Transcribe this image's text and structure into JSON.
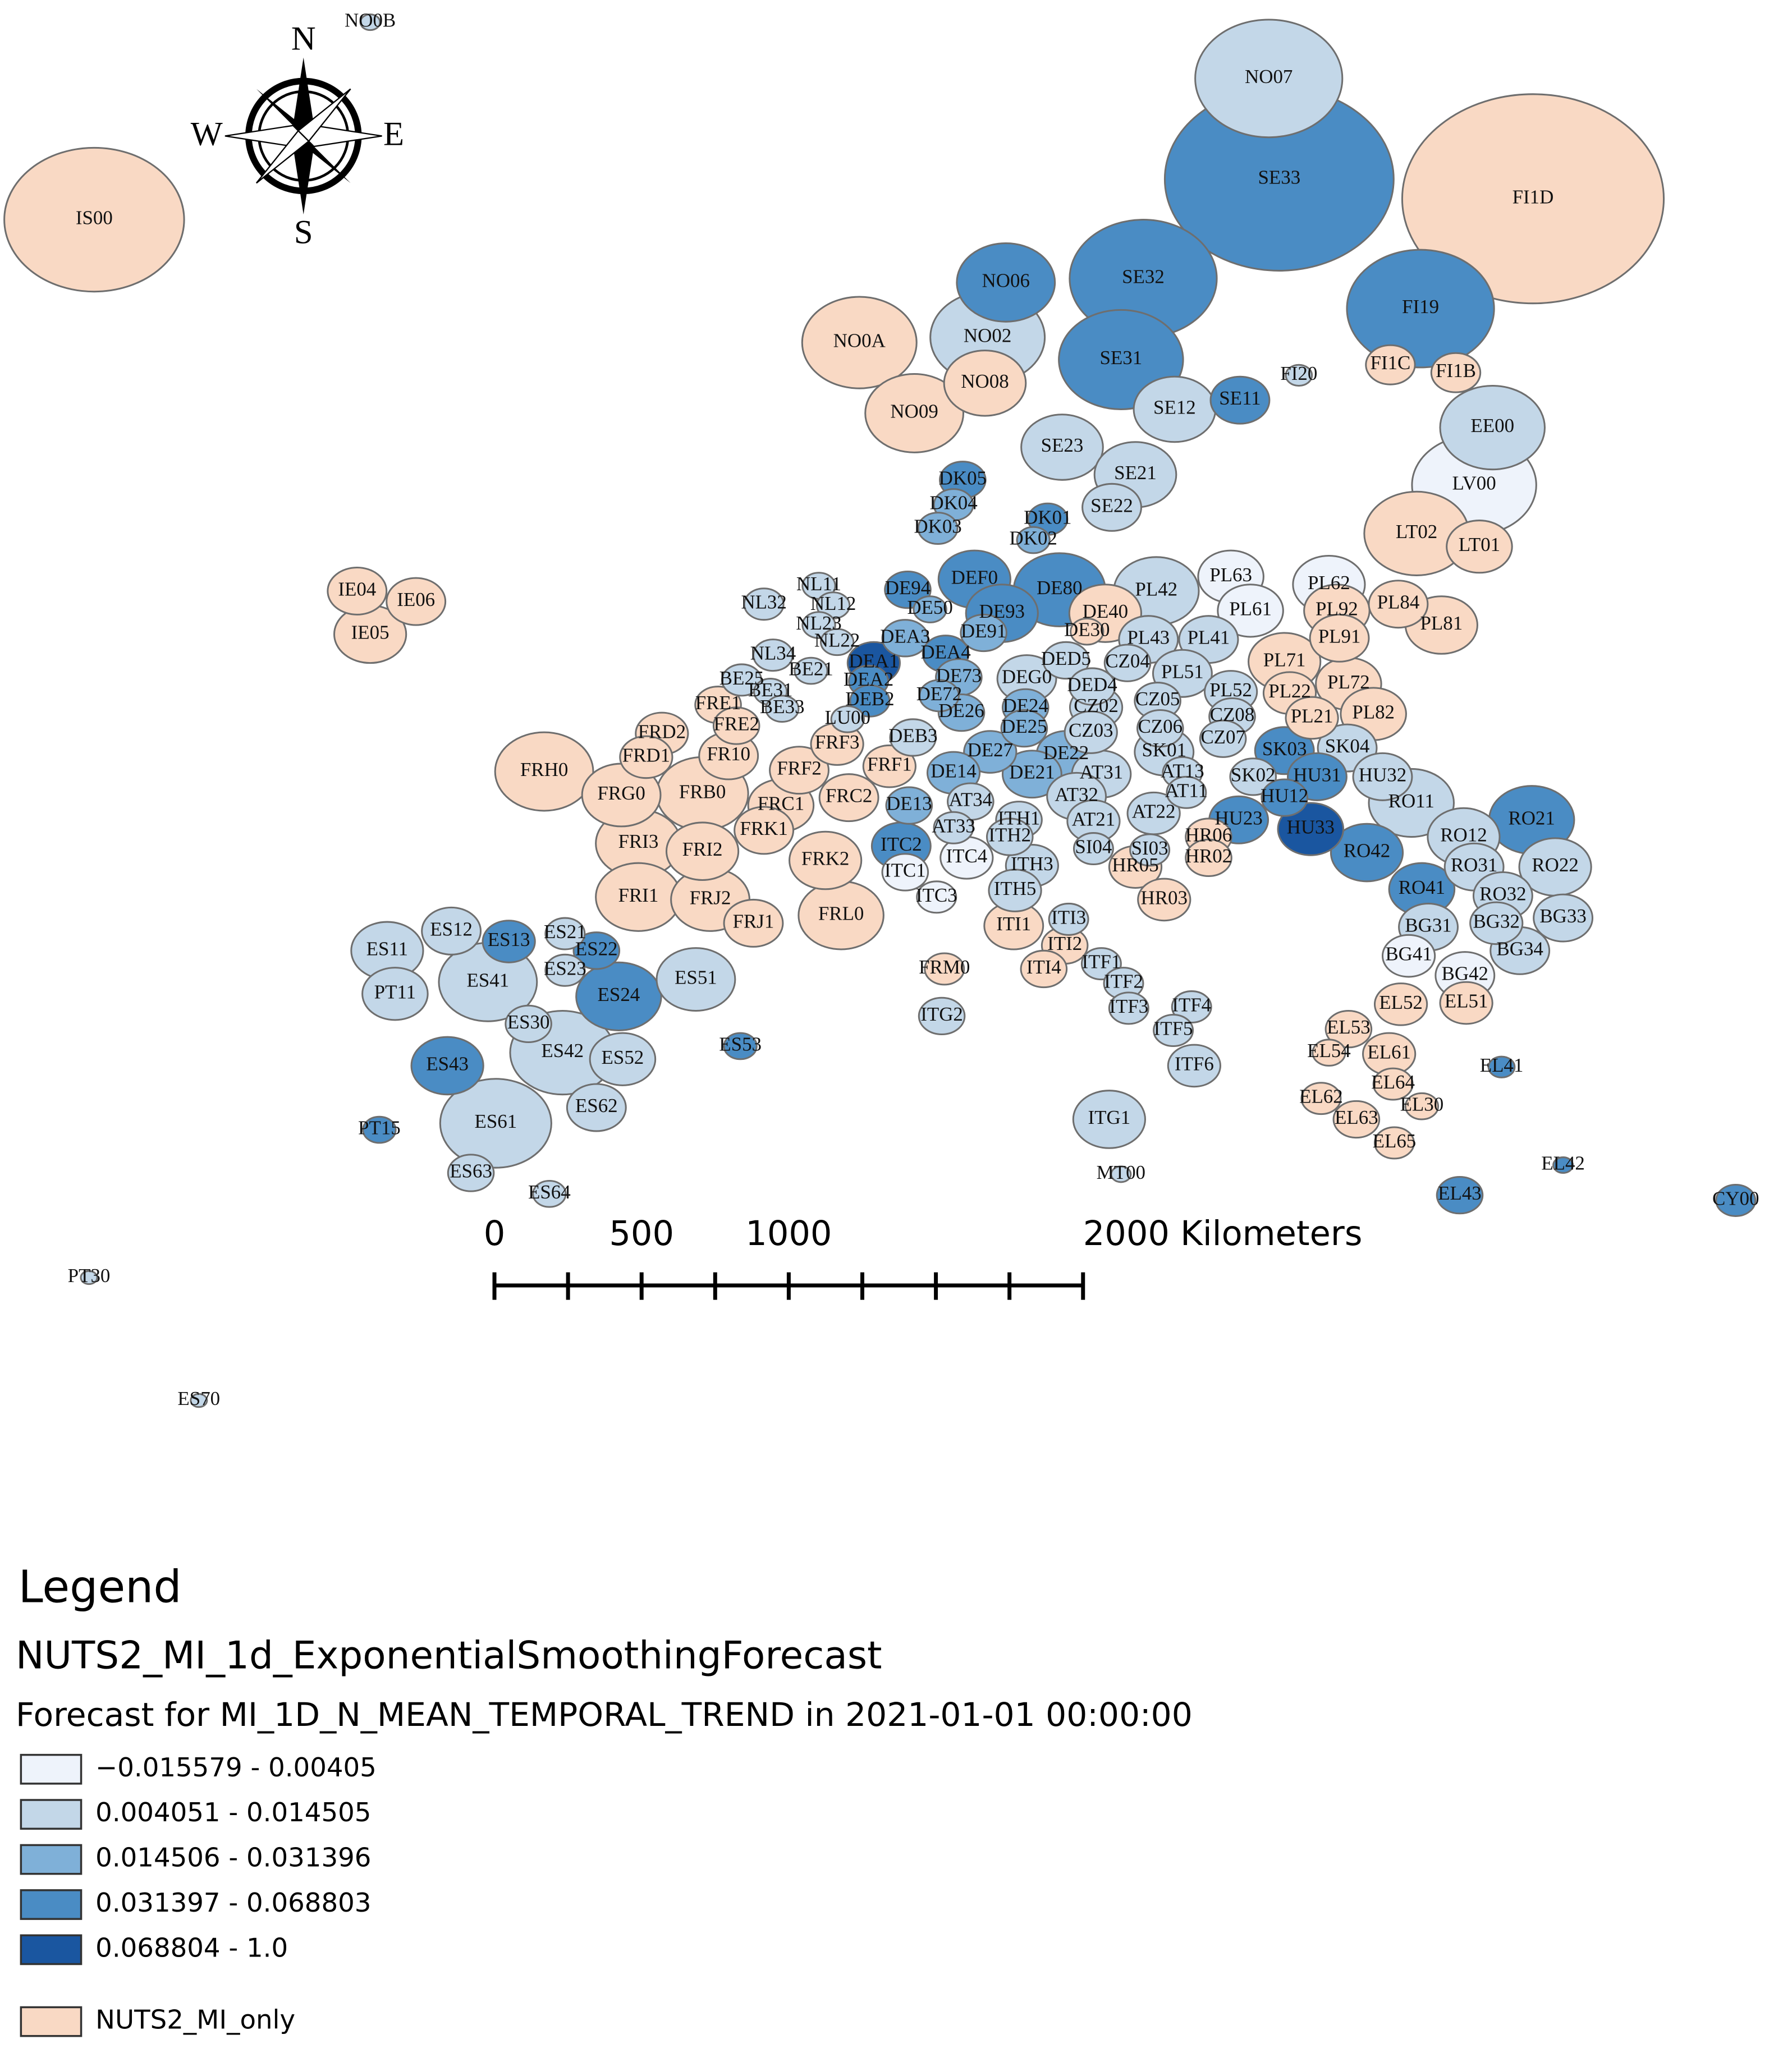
{
  "compass": {
    "n": "N",
    "e": "E",
    "s": "S",
    "w": "W"
  },
  "regions": [
    {
      "code": "NO0B",
      "color": "#c3d7e8"
    },
    {
      "code": "NO07",
      "color": "#c3d7e8"
    },
    {
      "code": "SE33",
      "color": "#4a8cc4"
    },
    {
      "code": "FI1D",
      "color": "#f9d9c4"
    },
    {
      "code": "IS00",
      "color": "#f9d9c4"
    },
    {
      "code": "NO06",
      "color": "#4a8cc4"
    },
    {
      "code": "SE32",
      "color": "#4a8cc4"
    },
    {
      "code": "FI19",
      "color": "#4a8cc4"
    },
    {
      "code": "NO02",
      "color": "#c3d7e8"
    },
    {
      "code": "NO0A",
      "color": "#f9d9c4"
    },
    {
      "code": "SE31",
      "color": "#4a8cc4"
    },
    {
      "code": "FI20",
      "color": "#c3d7e8"
    },
    {
      "code": "FI1C",
      "color": "#f9d9c4"
    },
    {
      "code": "FI1B",
      "color": "#f9d9c4"
    },
    {
      "code": "NO08",
      "color": "#f9d9c4"
    },
    {
      "code": "NO09",
      "color": "#f9d9c4"
    },
    {
      "code": "SE12",
      "color": "#c3d7e8"
    },
    {
      "code": "SE11",
      "color": "#4a8cc4"
    },
    {
      "code": "EE00",
      "color": "#c3d7e8"
    },
    {
      "code": "SE23",
      "color": "#c3d7e8"
    },
    {
      "code": "SE21",
      "color": "#c3d7e8"
    },
    {
      "code": "DK05",
      "color": "#4a8cc4"
    },
    {
      "code": "LV00",
      "color": "#eef3fb"
    },
    {
      "code": "DK04",
      "color": "#7fb0d8"
    },
    {
      "code": "SE22",
      "color": "#c3d7e8"
    },
    {
      "code": "DK01",
      "color": "#4a8cc4"
    },
    {
      "code": "DK03",
      "color": "#7fb0d8"
    },
    {
      "code": "DK02",
      "color": "#7fb0d8"
    },
    {
      "code": "LT02",
      "color": "#f9d9c4"
    },
    {
      "code": "LT01",
      "color": "#f9d9c4"
    },
    {
      "code": "IE04",
      "color": "#f9d9c4"
    },
    {
      "code": "IE06",
      "color": "#f9d9c4"
    },
    {
      "code": "IE05",
      "color": "#f9d9c4"
    },
    {
      "code": "NL11",
      "color": "#c3d7e8"
    },
    {
      "code": "DEF0",
      "color": "#4a8cc4"
    },
    {
      "code": "DE80",
      "color": "#4a8cc4"
    },
    {
      "code": "PL42",
      "color": "#c3d7e8"
    },
    {
      "code": "PL63",
      "color": "#eef3fb"
    },
    {
      "code": "PL62",
      "color": "#eef3fb"
    },
    {
      "code": "NL32",
      "color": "#c3d7e8"
    },
    {
      "code": "NL12",
      "color": "#c3d7e8"
    },
    {
      "code": "DE94",
      "color": "#4a8cc4"
    },
    {
      "code": "DE50",
      "color": "#7fb0d8"
    },
    {
      "code": "DE93",
      "color": "#4a8cc4"
    },
    {
      "code": "DE40",
      "color": "#f9d9c4"
    },
    {
      "code": "PL61",
      "color": "#eef3fb"
    },
    {
      "code": "PL92",
      "color": "#f9d9c4"
    },
    {
      "code": "PL84",
      "color": "#f9d9c4"
    },
    {
      "code": "NL23",
      "color": "#c3d7e8"
    },
    {
      "code": "DE91",
      "color": "#7fb0d8"
    },
    {
      "code": "DE30",
      "color": "#f9d9c4"
    },
    {
      "code": "PL81",
      "color": "#f9d9c4"
    },
    {
      "code": "NL22",
      "color": "#c3d7e8"
    },
    {
      "code": "DEA3",
      "color": "#7fb0d8"
    },
    {
      "code": "PL43",
      "color": "#c3d7e8"
    },
    {
      "code": "PL41",
      "color": "#c3d7e8"
    },
    {
      "code": "PL91",
      "color": "#f9d9c4"
    },
    {
      "code": "NL34",
      "color": "#c3d7e8"
    },
    {
      "code": "DEA4",
      "color": "#4a8cc4"
    },
    {
      "code": "DED5",
      "color": "#c3d7e8"
    },
    {
      "code": "CZ04",
      "color": "#c3d7e8"
    },
    {
      "code": "PL71",
      "color": "#f9d9c4"
    },
    {
      "code": "BE25",
      "color": "#c3d7e8"
    },
    {
      "code": "BE21",
      "color": "#c3d7e8"
    },
    {
      "code": "DEA1",
      "color": "#1a56a0"
    },
    {
      "code": "DE73",
      "color": "#7fb0d8"
    },
    {
      "code": "DEG0",
      "color": "#c3d7e8"
    },
    {
      "code": "PL51",
      "color": "#c3d7e8"
    },
    {
      "code": "PL72",
      "color": "#f9d9c4"
    },
    {
      "code": "BE31",
      "color": "#c3d7e8"
    },
    {
      "code": "DEA2",
      "color": "#4a8cc4"
    },
    {
      "code": "DE72",
      "color": "#7fb0d8"
    },
    {
      "code": "DED4",
      "color": "#c3d7e8"
    },
    {
      "code": "CZ05",
      "color": "#c3d7e8"
    },
    {
      "code": "PL52",
      "color": "#c3d7e8"
    },
    {
      "code": "PL22",
      "color": "#f9d9c4"
    },
    {
      "code": "FRE1",
      "color": "#f9d9c4"
    },
    {
      "code": "BE33",
      "color": "#c3d7e8"
    },
    {
      "code": "DEB2",
      "color": "#4a8cc4"
    },
    {
      "code": "DE26",
      "color": "#7fb0d8"
    },
    {
      "code": "DE24",
      "color": "#7fb0d8"
    },
    {
      "code": "CZ02",
      "color": "#c3d7e8"
    },
    {
      "code": "CZ08",
      "color": "#c3d7e8"
    },
    {
      "code": "PL21",
      "color": "#f9d9c4"
    },
    {
      "code": "PL82",
      "color": "#f9d9c4"
    },
    {
      "code": "FRE2",
      "color": "#f9d9c4"
    },
    {
      "code": "LU00",
      "color": "#c3d7e8"
    },
    {
      "code": "FRD2",
      "color": "#f9d9c4"
    },
    {
      "code": "DEB3",
      "color": "#c3d7e8"
    },
    {
      "code": "DE25",
      "color": "#7fb0d8"
    },
    {
      "code": "CZ03",
      "color": "#c3d7e8"
    },
    {
      "code": "CZ06",
      "color": "#c3d7e8"
    },
    {
      "code": "CZ07",
      "color": "#c3d7e8"
    },
    {
      "code": "SK03",
      "color": "#4a8cc4"
    },
    {
      "code": "SK04",
      "color": "#c3d7e8"
    },
    {
      "code": "FRD1",
      "color": "#f9d9c4"
    },
    {
      "code": "FR10",
      "color": "#f9d9c4"
    },
    {
      "code": "FRF3",
      "color": "#f9d9c4"
    },
    {
      "code": "DE27",
      "color": "#7fb0d8"
    },
    {
      "code": "DE22",
      "color": "#7fb0d8"
    },
    {
      "code": "SK01",
      "color": "#c3d7e8"
    },
    {
      "code": "FRH0",
      "color": "#f9d9c4"
    },
    {
      "code": "FRF2",
      "color": "#f9d9c4"
    },
    {
      "code": "FRF1",
      "color": "#f9d9c4"
    },
    {
      "code": "DE14",
      "color": "#7fb0d8"
    },
    {
      "code": "DE21",
      "color": "#7fb0d8"
    },
    {
      "code": "AT31",
      "color": "#c3d7e8"
    },
    {
      "code": "AT13",
      "color": "#c3d7e8"
    },
    {
      "code": "SK02",
      "color": "#c3d7e8"
    },
    {
      "code": "HU31",
      "color": "#4a8cc4"
    },
    {
      "code": "HU32",
      "color": "#c3d7e8"
    },
    {
      "code": "FRG0",
      "color": "#f9d9c4"
    },
    {
      "code": "FRB0",
      "color": "#f9d9c4"
    },
    {
      "code": "FRC1",
      "color": "#f9d9c4"
    },
    {
      "code": "FRC2",
      "color": "#f9d9c4"
    },
    {
      "code": "DE13",
      "color": "#7fb0d8"
    },
    {
      "code": "AT34",
      "color": "#c3d7e8"
    },
    {
      "code": "AT32",
      "color": "#c3d7e8"
    },
    {
      "code": "AT11",
      "color": "#c3d7e8"
    },
    {
      "code": "HU12",
      "color": "#4a8cc4"
    },
    {
      "code": "RO11",
      "color": "#c3d7e8"
    },
    {
      "code": "FRK1",
      "color": "#f9d9c4"
    },
    {
      "code": "ITC2",
      "color": "#4a8cc4"
    },
    {
      "code": "AT33",
      "color": "#c3d7e8"
    },
    {
      "code": "ITH1",
      "color": "#c3d7e8"
    },
    {
      "code": "AT21",
      "color": "#c3d7e8"
    },
    {
      "code": "AT22",
      "color": "#c3d7e8"
    },
    {
      "code": "HU23",
      "color": "#4a8cc4"
    },
    {
      "code": "HU33",
      "color": "#1a56a0"
    },
    {
      "code": "RO12",
      "color": "#c3d7e8"
    },
    {
      "code": "RO21",
      "color": "#4a8cc4"
    },
    {
      "code": "FRI3",
      "color": "#f9d9c4"
    },
    {
      "code": "FRI2",
      "color": "#f9d9c4"
    },
    {
      "code": "ITH2",
      "color": "#c3d7e8"
    },
    {
      "code": "HR06",
      "color": "#f9d9c4"
    },
    {
      "code": "SI04",
      "color": "#c3d7e8"
    },
    {
      "code": "SI03",
      "color": "#c3d7e8"
    },
    {
      "code": "FRK2",
      "color": "#f9d9c4"
    },
    {
      "code": "ITC4",
      "color": "#eef3fb"
    },
    {
      "code": "ITH3",
      "color": "#c3d7e8"
    },
    {
      "code": "HR05",
      "color": "#f9d9c4"
    },
    {
      "code": "HR02",
      "color": "#f9d9c4"
    },
    {
      "code": "RO42",
      "color": "#4a8cc4"
    },
    {
      "code": "RO31",
      "color": "#c3d7e8"
    },
    {
      "code": "RO22",
      "color": "#c3d7e8"
    },
    {
      "code": "ITC1",
      "color": "#eef3fb"
    },
    {
      "code": "FRI1",
      "color": "#f9d9c4"
    },
    {
      "code": "FRJ2",
      "color": "#f9d9c4"
    },
    {
      "code": "ITC3",
      "color": "#eef3fb"
    },
    {
      "code": "ITH5",
      "color": "#c3d7e8"
    },
    {
      "code": "HR03",
      "color": "#f9d9c4"
    },
    {
      "code": "RO41",
      "color": "#4a8cc4"
    },
    {
      "code": "RO32",
      "color": "#c3d7e8"
    },
    {
      "code": "FRL0",
      "color": "#f9d9c4"
    },
    {
      "code": "BG31",
      "color": "#c3d7e8"
    },
    {
      "code": "BG32",
      "color": "#c3d7e8"
    },
    {
      "code": "BG33",
      "color": "#c3d7e8"
    },
    {
      "code": "ES12",
      "color": "#c3d7e8"
    },
    {
      "code": "ES13",
      "color": "#4a8cc4"
    },
    {
      "code": "ES21",
      "color": "#c3d7e8"
    },
    {
      "code": "FRJ1",
      "color": "#f9d9c4"
    },
    {
      "code": "ITI3",
      "color": "#c3d7e8"
    },
    {
      "code": "ITI1",
      "color": "#f9d9c4"
    },
    {
      "code": "ITI2",
      "color": "#f9d9c4"
    },
    {
      "code": "ES11",
      "color": "#c3d7e8"
    },
    {
      "code": "ES22",
      "color": "#4a8cc4"
    },
    {
      "code": "BG41",
      "color": "#eef3fb"
    },
    {
      "code": "BG34",
      "color": "#c3d7e8"
    },
    {
      "code": "ES23",
      "color": "#c3d7e8"
    },
    {
      "code": "ITI4",
      "color": "#f9d9c4"
    },
    {
      "code": "ITF1",
      "color": "#c3d7e8"
    },
    {
      "code": "FRM0",
      "color": "#f9d9c4"
    },
    {
      "code": "BG42",
      "color": "#eef3fb"
    },
    {
      "code": "ES41",
      "color": "#c3d7e8"
    },
    {
      "code": "ES51",
      "color": "#c3d7e8"
    },
    {
      "code": "ITF2",
      "color": "#c3d7e8"
    },
    {
      "code": "PT11",
      "color": "#c3d7e8"
    },
    {
      "code": "ES24",
      "color": "#4a8cc4"
    },
    {
      "code": "EL52",
      "color": "#f9d9c4"
    },
    {
      "code": "EL51",
      "color": "#f9d9c4"
    },
    {
      "code": "ITF3",
      "color": "#c3d7e8"
    },
    {
      "code": "ITF4",
      "color": "#c3d7e8"
    },
    {
      "code": "ITG2",
      "color": "#c3d7e8"
    },
    {
      "code": "ES30",
      "color": "#c3d7e8"
    },
    {
      "code": "EL53",
      "color": "#f9d9c4"
    },
    {
      "code": "ITF5",
      "color": "#c3d7e8"
    },
    {
      "code": "ES53",
      "color": "#4a8cc4"
    },
    {
      "code": "ES42",
      "color": "#c3d7e8"
    },
    {
      "code": "ES52",
      "color": "#c3d7e8"
    },
    {
      "code": "EL54",
      "color": "#f9d9c4"
    },
    {
      "code": "EL61",
      "color": "#f9d9c4"
    },
    {
      "code": "ES43",
      "color": "#4a8cc4"
    },
    {
      "code": "EL41",
      "color": "#4a8cc4"
    },
    {
      "code": "ITF6",
      "color": "#c3d7e8"
    },
    {
      "code": "EL64",
      "color": "#f9d9c4"
    },
    {
      "code": "EL62",
      "color": "#f9d9c4"
    },
    {
      "code": "ES62",
      "color": "#c3d7e8"
    },
    {
      "code": "EL30",
      "color": "#f9d9c4"
    },
    {
      "code": "ES61",
      "color": "#c3d7e8"
    },
    {
      "code": "ITG1",
      "color": "#c3d7e8"
    },
    {
      "code": "EL63",
      "color": "#f9d9c4"
    },
    {
      "code": "PT15",
      "color": "#4a8cc4"
    },
    {
      "code": "EL65",
      "color": "#f9d9c4"
    },
    {
      "code": "EL42",
      "color": "#4a8cc4"
    },
    {
      "code": "ES63",
      "color": "#c3d7e8"
    },
    {
      "code": "MT00",
      "color": "#c3d7e8"
    },
    {
      "code": "ES64",
      "color": "#c3d7e8"
    },
    {
      "code": "EL43",
      "color": "#4a8cc4"
    },
    {
      "code": "CY00",
      "color": "#4a8cc4"
    },
    {
      "code": "PT30",
      "color": "#c3d7e8"
    },
    {
      "code": "ES70",
      "color": "#c3d7e8"
    }
  ],
  "scale_bar": {
    "ticks": [
      0,
      250,
      500,
      750,
      1000,
      1250,
      1500,
      1750,
      2000
    ],
    "labels": [
      0,
      500,
      1000,
      {
        "value": 2000,
        "label": "2000 Kilometers"
      }
    ]
  },
  "legend": {
    "title": "Legend",
    "layer": "NUTS2_MI_1d_ExponentialSmoothingForecast",
    "subtitle": "Forecast for MI_1D_N_MEAN_TEMPORAL_TREND in 2021-01-01 00:00:00",
    "classes": [
      {
        "label": "−0.015579 - 0.00405",
        "color": "#eef3fb"
      },
      {
        "label": "0.004051 - 0.014505",
        "color": "#c3d7e8"
      },
      {
        "label": "0.014506 - 0.031396",
        "color": "#7fb0d8"
      },
      {
        "label": "0.031397 - 0.068803",
        "color": "#4a8cc4"
      },
      {
        "label": "0.068804 - 1.0",
        "color": "#1a56a0"
      }
    ],
    "other": {
      "label": "NUTS2_MI_only",
      "color": "#f9d9c4"
    }
  }
}
